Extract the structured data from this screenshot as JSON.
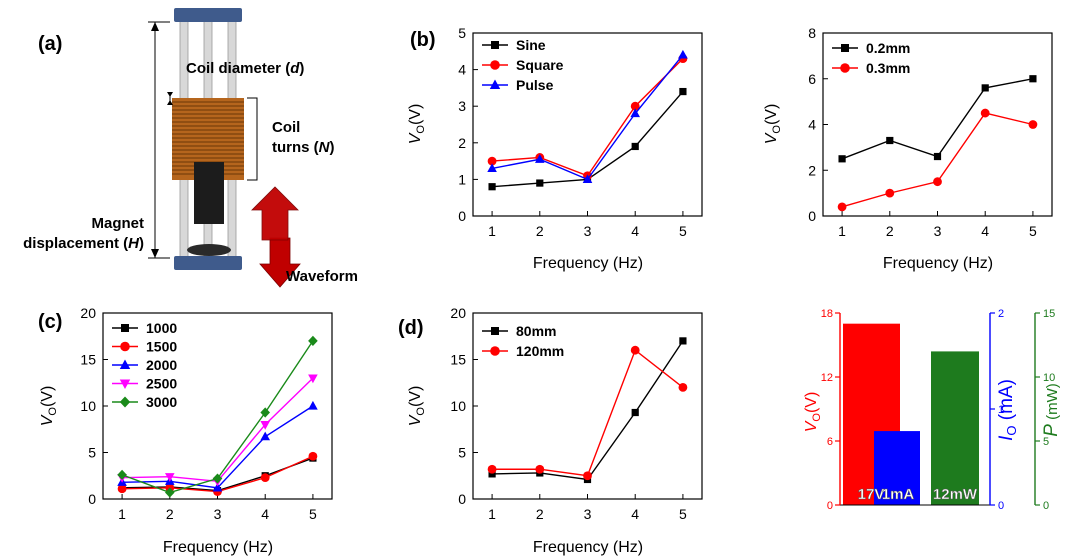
{
  "panel_labels": [
    "(a)",
    "(b)",
    "(c)",
    "(d)"
  ],
  "device": {
    "coil_diameter_label": "Coil diameter (",
    "coil_diameter_symbol": "d",
    "coil_turns_line1": "Coil",
    "coil_turns_line2": "turns (",
    "coil_turns_symbol": "N",
    "magnet_line1": "Magnet",
    "magnet_line2": "displacement (",
    "magnet_symbol": "H",
    "waveform_label": "Waveform",
    "close_paren": ")"
  },
  "colors": {
    "black": "#000000",
    "red": "#ff0000",
    "blue": "#0000ff",
    "magenta": "#ff00ff",
    "green": "#1a8a1a",
    "bar_green": "#1e7b1e",
    "coil": "#b5651d",
    "cap": "#3f5b8c",
    "arrow": "#c00000"
  },
  "axis_text": {
    "vo_symbol": "V",
    "vo_sub": "O",
    "vo_unit": "(V)",
    "freq_label": "Frequency (Hz)"
  },
  "chart_data": [
    {
      "id": "b1",
      "type": "line",
      "xlabel": "Frequency (Hz)",
      "ylabel": "VO(V)",
      "x": [
        1,
        2,
        3,
        4,
        5
      ],
      "xlim": [
        0.6,
        5.4
      ],
      "ylim": [
        0,
        5
      ],
      "xticks": [
        1,
        2,
        3,
        4,
        5
      ],
      "yticks": [
        0,
        1,
        2,
        3,
        4,
        5
      ],
      "legend": "top-left",
      "series": [
        {
          "name": "Sine",
          "values": [
            0.8,
            0.9,
            1.0,
            1.9,
            3.4
          ],
          "marker": "square",
          "color": "#000000"
        },
        {
          "name": "Square",
          "values": [
            1.5,
            1.6,
            1.1,
            3.0,
            4.3
          ],
          "marker": "circle",
          "color": "#ff0000"
        },
        {
          "name": "Pulse",
          "values": [
            1.3,
            1.55,
            1.0,
            2.8,
            4.4
          ],
          "marker": "triangle",
          "color": "#0000ff"
        }
      ]
    },
    {
      "id": "b2",
      "type": "line",
      "xlabel": "Frequency (Hz)",
      "ylabel": "VO(V)",
      "x": [
        1,
        2,
        3,
        4,
        5
      ],
      "xlim": [
        0.6,
        5.4
      ],
      "ylim": [
        0,
        8
      ],
      "xticks": [
        1,
        2,
        3,
        4,
        5
      ],
      "yticks": [
        0,
        2,
        4,
        6,
        8
      ],
      "legend": "top-left",
      "series": [
        {
          "name": "0.2mm",
          "values": [
            2.5,
            3.3,
            2.6,
            5.6,
            6.0
          ],
          "marker": "square",
          "color": "#000000"
        },
        {
          "name": "0.3mm",
          "values": [
            0.4,
            1.0,
            1.5,
            4.5,
            4.0
          ],
          "marker": "circle",
          "color": "#ff0000"
        }
      ]
    },
    {
      "id": "c",
      "type": "line",
      "xlabel": "Frequency (Hz)",
      "ylabel": "VO(V)",
      "x": [
        1,
        2,
        3,
        4,
        5
      ],
      "xlim": [
        0.6,
        5.4
      ],
      "ylim": [
        0,
        20
      ],
      "xticks": [
        1,
        2,
        3,
        4,
        5
      ],
      "yticks": [
        0,
        5,
        10,
        15,
        20
      ],
      "legend": "top-left",
      "series": [
        {
          "name": "1000",
          "values": [
            1.2,
            1.3,
            0.9,
            2.5,
            4.4
          ],
          "marker": "square",
          "color": "#000000"
        },
        {
          "name": "1500",
          "values": [
            1.1,
            1.2,
            0.8,
            2.3,
            4.6
          ],
          "marker": "circle",
          "color": "#ff0000"
        },
        {
          "name": "2000",
          "values": [
            1.8,
            1.9,
            1.2,
            6.7,
            10.0
          ],
          "marker": "triangle",
          "color": "#0000ff"
        },
        {
          "name": "2500",
          "values": [
            2.3,
            2.4,
            1.9,
            8.0,
            13.0
          ],
          "marker": "triangle-down",
          "color": "#ff00ff"
        },
        {
          "name": "3000",
          "values": [
            2.6,
            0.7,
            2.2,
            9.3,
            17.0
          ],
          "marker": "diamond",
          "color": "#1a8a1a"
        }
      ]
    },
    {
      "id": "d",
      "type": "line",
      "xlabel": "Frequency (Hz)",
      "ylabel": "VO(V)",
      "x": [
        1,
        2,
        3,
        4,
        5
      ],
      "xlim": [
        0.6,
        5.4
      ],
      "ylim": [
        0,
        20
      ],
      "xticks": [
        1,
        2,
        3,
        4,
        5
      ],
      "yticks": [
        0,
        5,
        10,
        15,
        20
      ],
      "legend": "top-left",
      "series": [
        {
          "name": "80mm",
          "values": [
            2.7,
            2.8,
            2.1,
            9.3,
            17.0
          ],
          "marker": "square",
          "color": "#000000"
        },
        {
          "name": "120mm",
          "values": [
            3.2,
            3.2,
            2.5,
            16.0,
            12.0
          ],
          "marker": "circle",
          "color": "#ff0000"
        }
      ]
    },
    {
      "id": "bars",
      "type": "bar",
      "categories": [
        "VO",
        "IO",
        "P"
      ],
      "values": [
        17,
        0.77,
        12
      ],
      "value_labels": [
        "17V",
        "1mA",
        "12mW"
      ],
      "bar_colors": [
        "#ff0000",
        "#0000ff",
        "#1e7b1e"
      ],
      "axes": [
        {
          "symbol": "V",
          "sub": "O",
          "unit": "(V)",
          "ylim": [
            0,
            18
          ],
          "yticks": [
            0,
            6,
            12,
            18
          ],
          "tick_labels": [
            "0",
            "6",
            "12",
            "18"
          ],
          "color": "#ff0000"
        },
        {
          "symbol": "I",
          "sub": "O",
          "unit": " (mA)",
          "ylim": [
            0,
            2
          ],
          "yticks": [
            0,
            1,
            2
          ],
          "tick_labels": [
            "0",
            "1",
            "2"
          ],
          "color": "#0000ff"
        },
        {
          "symbol": "P",
          "sub": "",
          "unit": " (mW)",
          "ylim": [
            0,
            15
          ],
          "yticks": [
            0,
            5,
            10,
            15
          ],
          "tick_labels": [
            "0",
            "5",
            "10",
            "15"
          ],
          "color": "#1e7b1e"
        }
      ]
    }
  ]
}
